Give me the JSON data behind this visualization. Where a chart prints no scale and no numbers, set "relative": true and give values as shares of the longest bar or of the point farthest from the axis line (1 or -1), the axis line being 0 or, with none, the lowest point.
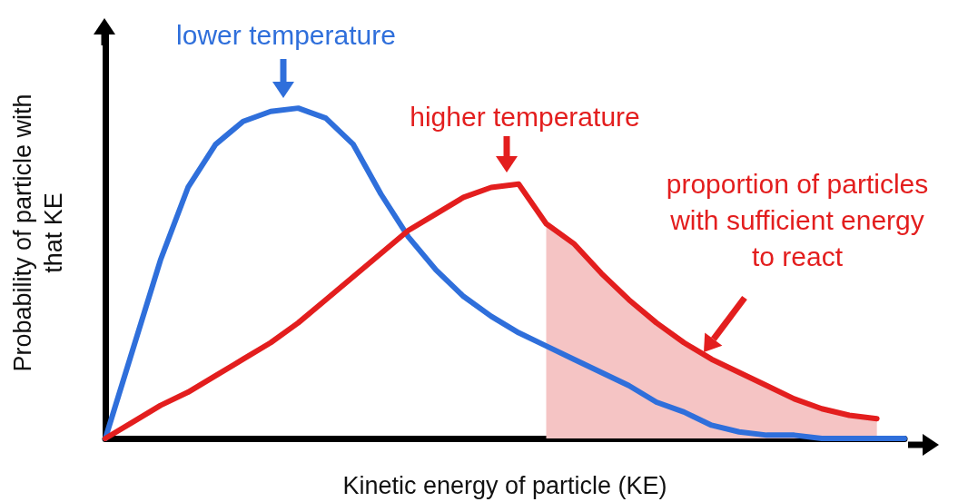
{
  "chart_data": {
    "type": "line",
    "relative": true,
    "xlabel": "Kinetic energy of particle (KE)",
    "ylabel": "Probability of particle with that KE",
    "categories": [
      null,
      null,
      null,
      null,
      null,
      null,
      null,
      null,
      null,
      null,
      null,
      null,
      null,
      null,
      null,
      null,
      null,
      null,
      null,
      null,
      null,
      null,
      null,
      null,
      null,
      null,
      null,
      null,
      null,
      null
    ],
    "series": [
      {
        "color": "#2f6fdb",
        "values": [
          0,
          0.27,
          0.54,
          0.76,
          0.89,
          0.96,
          0.99,
          1,
          0.97,
          0.89,
          0.74,
          0.61,
          0.51,
          0.43,
          0.37,
          0.32,
          0.28,
          0.24,
          0.2,
          0.16,
          0.11,
          0.08,
          0.04,
          0.02,
          0.01,
          0.01,
          0,
          0,
          0,
          0
        ]
      },
      {
        "color": "#e31e1e",
        "values": [
          0,
          0.05,
          0.1,
          0.14,
          0.19,
          0.24,
          0.29,
          0.35,
          0.42,
          0.49,
          0.56,
          0.63,
          0.68,
          0.73,
          0.76,
          0.77,
          0.65,
          0.59,
          0.5,
          0.42,
          0.35,
          0.29,
          0.24,
          0.2,
          0.16,
          0.12,
          0.09,
          0.07,
          0.06,
          null
        ]
      },
      {
        "type": "area",
        "color": "#f5c4c4",
        "values": [
          null,
          null,
          null,
          null,
          null,
          null,
          null,
          null,
          null,
          null,
          null,
          null,
          null,
          null,
          null,
          null,
          0.65,
          0.59,
          0.5,
          0.42,
          0.35,
          0.29,
          0.24,
          0.2,
          0.16,
          0.12,
          0.09,
          0.07,
          0.06,
          null
        ]
      }
    ],
    "annotations": [
      "lower temperature",
      "higher temperature",
      "proportion of particles\nwith sufficient energy\nto react"
    ],
    "grid": false,
    "marker": "none",
    "line_style": "solid"
  }
}
